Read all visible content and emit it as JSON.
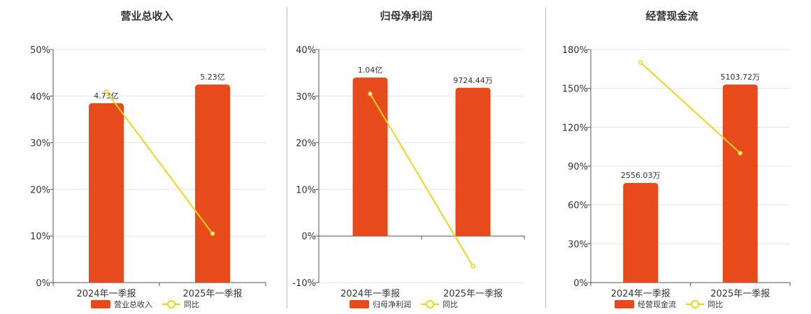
{
  "colors": {
    "bar": "#e84b1b",
    "line": "#f2d417",
    "grid": "#e6e6e6",
    "axis": "#555555"
  },
  "legend": {
    "line_label": "同比"
  },
  "chart_data": [
    {
      "type": "bar",
      "title": "营业总收入",
      "categories": [
        "2024年一季报",
        "2025年一季报"
      ],
      "series": [
        {
          "name": "营业总收入",
          "type": "bar",
          "values": [
            38.5,
            42.5
          ],
          "labels": [
            "4.73亿",
            "5.23亿"
          ]
        },
        {
          "name": "同比",
          "type": "line",
          "values": [
            41.0,
            10.5
          ]
        }
      ],
      "ylim": [
        0,
        50
      ],
      "yticks": [
        "0%",
        "10%",
        "20%",
        "30%",
        "40%",
        "50%"
      ],
      "grid": true,
      "legend_position": "bottom"
    },
    {
      "type": "bar",
      "title": "归母净利润",
      "categories": [
        "2024年一季报",
        "2025年一季报"
      ],
      "series": [
        {
          "name": "归母净利润",
          "type": "bar",
          "values": [
            34.0,
            31.8
          ],
          "labels": [
            "1.04亿",
            "9724.44万"
          ]
        },
        {
          "name": "同比",
          "type": "line",
          "values": [
            30.5,
            -6.5
          ]
        }
      ],
      "ylim": [
        -10,
        40
      ],
      "yticks": [
        "-10%",
        "0%",
        "10%",
        "20%",
        "30%",
        "40%"
      ],
      "grid": true,
      "legend_position": "bottom"
    },
    {
      "type": "bar",
      "title": "经营现金流",
      "categories": [
        "2024年一季报",
        "2025年一季报"
      ],
      "series": [
        {
          "name": "经营现金流",
          "type": "bar",
          "values": [
            77,
            153
          ],
          "labels": [
            "2556.03万",
            "5103.72万"
          ]
        },
        {
          "name": "同比",
          "type": "line",
          "values": [
            170,
            100
          ]
        }
      ],
      "ylim": [
        0,
        180
      ],
      "yticks": [
        "0%",
        "30%",
        "60%",
        "90%",
        "120%",
        "150%",
        "180%"
      ],
      "grid": true,
      "legend_position": "bottom"
    }
  ]
}
